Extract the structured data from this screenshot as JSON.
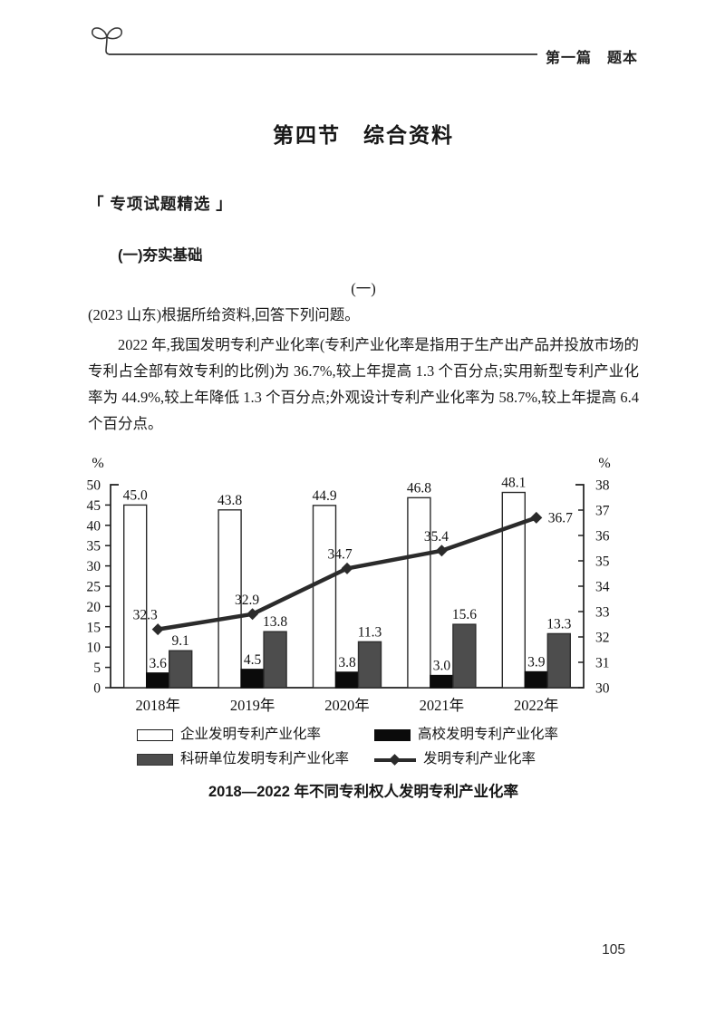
{
  "header": {
    "section_label": "第一篇　题本"
  },
  "title": "第四节　综合资料",
  "section_heading": "「 专项试题精选 」",
  "subsection_heading": "(一)夯实基础",
  "item_number": "(一)",
  "intro": "(2023 山东)根据所给资料,回答下列问题。",
  "paragraph": "2022 年,我国发明专利产业化率(专利产业化率是指用于生产出产品并投放市场的专利占全部有效专利的比例)为 36.7%,较上年提高 1.3 个百分点;实用新型专利产业化率为 44.9%,较上年降低 1.3 个百分点;外观设计专利产业化率为 58.7%,较上年提高 6.4 个百分点。",
  "page_number": "105",
  "chart_data": {
    "type": "bar",
    "subtype": "grouped-bars-with-line",
    "categories": [
      "2018年",
      "2019年",
      "2020年",
      "2021年",
      "2022年"
    ],
    "series": [
      {
        "name": "企业发明专利产业化率",
        "type": "bar",
        "axis": "left",
        "fill": "#ffffff",
        "stroke": "#2b2b2b",
        "values": [
          45.0,
          43.8,
          44.9,
          46.8,
          48.1
        ]
      },
      {
        "name": "高校发明专利产业化率",
        "type": "bar",
        "axis": "left",
        "fill": "#0b0b0b",
        "stroke": "#0b0b0b",
        "values": [
          3.6,
          4.5,
          3.8,
          3.0,
          3.9
        ]
      },
      {
        "name": "科研单位发明专利产业化率",
        "type": "bar",
        "axis": "left",
        "fill": "#4d4d4d",
        "stroke": "#2e2e2e",
        "values": [
          9.1,
          13.8,
          11.3,
          15.6,
          13.3
        ]
      },
      {
        "name": "发明专利产业化率",
        "type": "line",
        "axis": "right",
        "color": "#2b2b2b",
        "marker": "diamond",
        "values": [
          32.3,
          32.9,
          34.7,
          35.4,
          36.7
        ]
      }
    ],
    "left_axis": {
      "label": "%",
      "min": 0,
      "max": 50,
      "step": 5
    },
    "right_axis": {
      "label": "%",
      "min": 30,
      "max": 38,
      "step": 1
    },
    "grid": false,
    "legend_position": "bottom",
    "caption": "2018—2022 年不同专利权人发明专利产业化率"
  }
}
